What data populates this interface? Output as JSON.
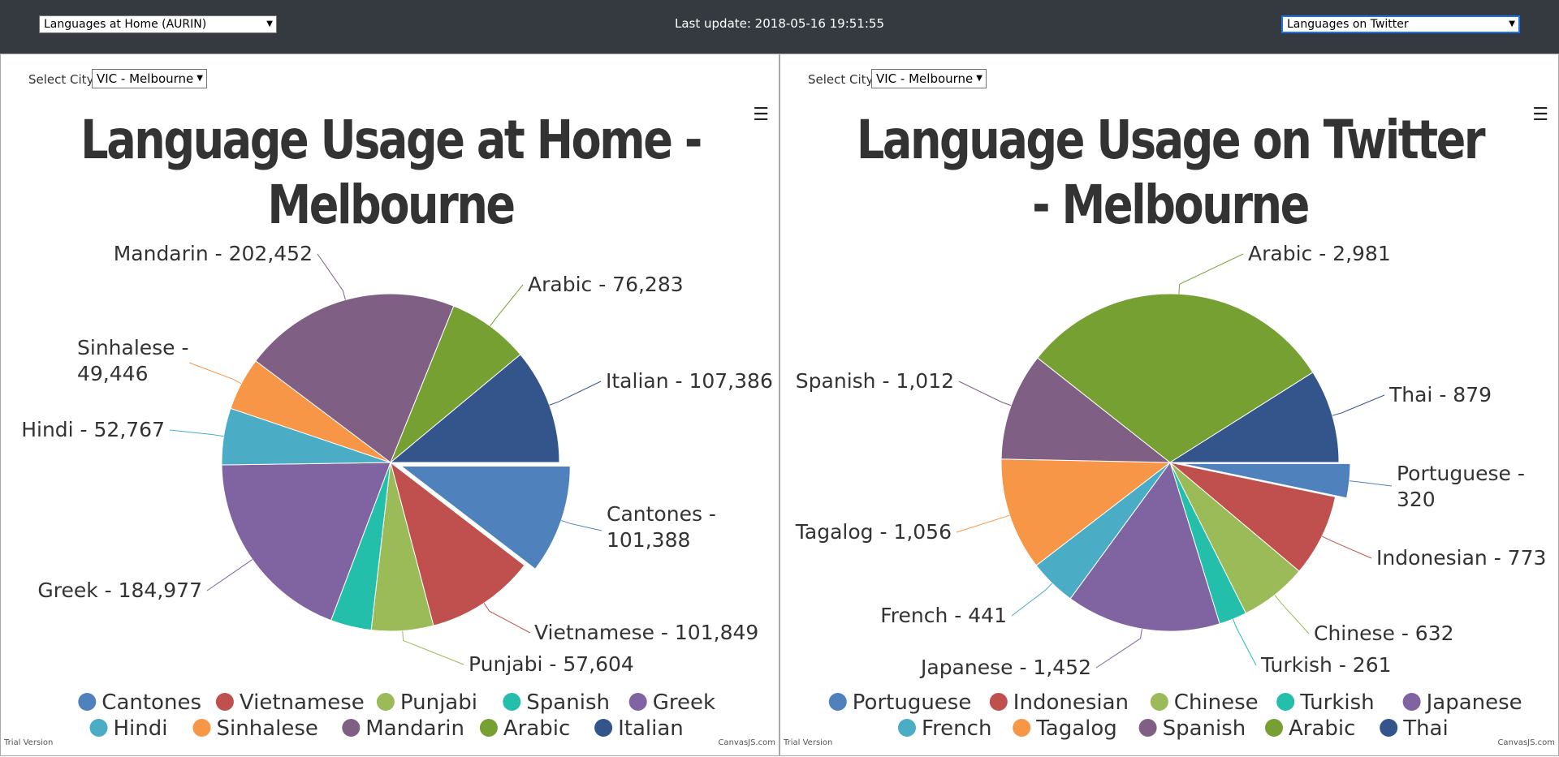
{
  "header": {
    "left_select": "Languages at Home (AURIN)",
    "update": "Last update: 2018-05-16 19:51:55",
    "right_select": "Languages on Twitter"
  },
  "city_label": "Select City",
  "trial_text": "Trial Version",
  "credit_text": "CanvasJS.com",
  "chart_data": [
    {
      "type": "pie",
      "title": "Language Usage at Home - Melbourne",
      "city": "VIC - Melbourne",
      "legend_position": "bottom",
      "exploded_index": 0,
      "slices": [
        {
          "name": "Cantones",
          "label": "Cantones - 101,388",
          "value": 101388,
          "color": "#4f81bc"
        },
        {
          "name": "Vietnamese",
          "label": "Vietnamese - 101,849",
          "value": 101849,
          "color": "#c0504e"
        },
        {
          "name": "Punjabi",
          "label": "Punjabi - 57,604",
          "value": 57604,
          "color": "#9bbb58"
        },
        {
          "name": "Spanish",
          "label": "Spanish",
          "value": 38000,
          "color": "#23bfaa"
        },
        {
          "name": "Greek",
          "label": "Greek - 184,977",
          "value": 184977,
          "color": "#8064a1"
        },
        {
          "name": "Hindi",
          "label": "Hindi - 52,767",
          "value": 52767,
          "color": "#4aacc5"
        },
        {
          "name": "Sinhalese",
          "label": "Sinhalese - 49,446",
          "value": 49446,
          "color": "#f79647"
        },
        {
          "name": "Mandarin",
          "label": "Mandarin - 202,452",
          "value": 202452,
          "color": "#7f6084"
        },
        {
          "name": "Arabic",
          "label": "Arabic - 76,283",
          "value": 76283,
          "color": "#77a033"
        },
        {
          "name": "Italian",
          "label": "Italian - 107,386",
          "value": 107386,
          "color": "#33558b"
        }
      ]
    },
    {
      "type": "pie",
      "title": "Language Usage on Twitter - Melbourne",
      "city": "VIC - Melbourne",
      "legend_position": "bottom",
      "exploded_index": 0,
      "slices": [
        {
          "name": "Portuguese",
          "label": "Portuguese - 320",
          "value": 320,
          "color": "#4f81bc"
        },
        {
          "name": "Indonesian",
          "label": "Indonesian - 773",
          "value": 773,
          "color": "#c0504e"
        },
        {
          "name": "Chinese",
          "label": "Chinese - 632",
          "value": 632,
          "color": "#9bbb58"
        },
        {
          "name": "Turkish",
          "label": "Turkish - 261",
          "value": 261,
          "color": "#23bfaa"
        },
        {
          "name": "Japanese",
          "label": "Japanese - 1,452",
          "value": 1452,
          "color": "#8064a1"
        },
        {
          "name": "French",
          "label": "French - 441",
          "value": 441,
          "color": "#4aacc5"
        },
        {
          "name": "Tagalog",
          "label": "Tagalog - 1,056",
          "value": 1056,
          "color": "#f79647"
        },
        {
          "name": "Spanish",
          "label": "Spanish - 1,012",
          "value": 1012,
          "color": "#7f6084"
        },
        {
          "name": "Arabic",
          "label": "Arabic - 2,981",
          "value": 2981,
          "color": "#77a033"
        },
        {
          "name": "Thai",
          "label": "Thai - 879",
          "value": 879,
          "color": "#33558b"
        }
      ]
    }
  ]
}
